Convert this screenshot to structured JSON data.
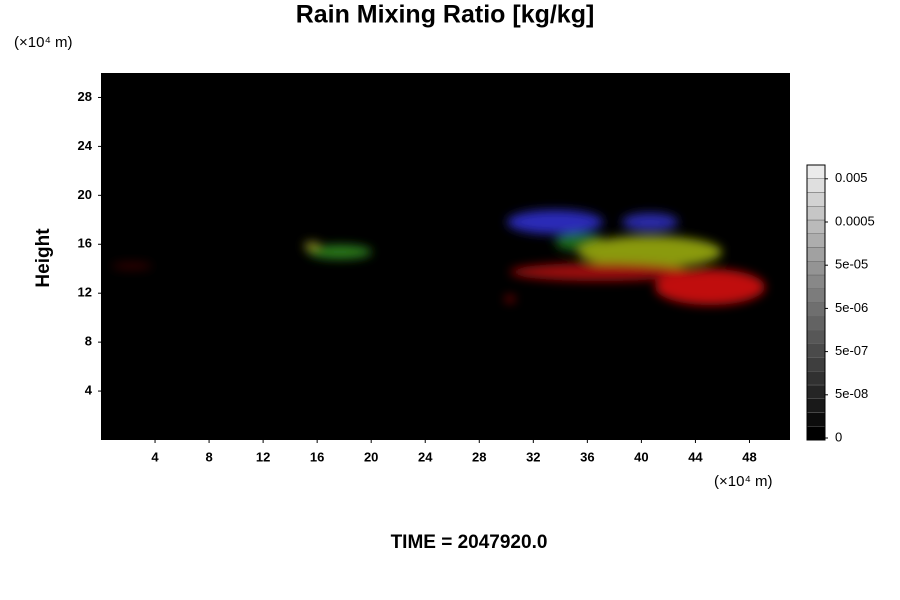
{
  "chart_data": {
    "type": "volume",
    "title": "Rain Mixing Ratio [kg/kg]",
    "x_unit": "(×10⁴ m)",
    "y_unit": "(×10⁴ m)",
    "y_label": "Height",
    "footer": "TIME = 2047920.0",
    "xlim": [
      0,
      51
    ],
    "xticks": [
      4,
      8,
      12,
      16,
      20,
      24,
      28,
      32,
      36,
      40,
      44,
      48
    ],
    "ylim": [
      0,
      30
    ],
    "yticks": [
      4,
      8,
      12,
      16,
      20,
      24,
      28
    ],
    "colorbar_ticks": [
      {
        "value": 0,
        "label": "0"
      },
      {
        "value": 5e-08,
        "label": "5e-08"
      },
      {
        "value": 5e-07,
        "label": "5e-07"
      },
      {
        "value": 5e-06,
        "label": "5e-06"
      },
      {
        "value": 5e-05,
        "label": "5e-05"
      },
      {
        "value": 0.0005,
        "label": "0.0005"
      },
      {
        "value": 0.005,
        "label": "0.005"
      }
    ]
  }
}
